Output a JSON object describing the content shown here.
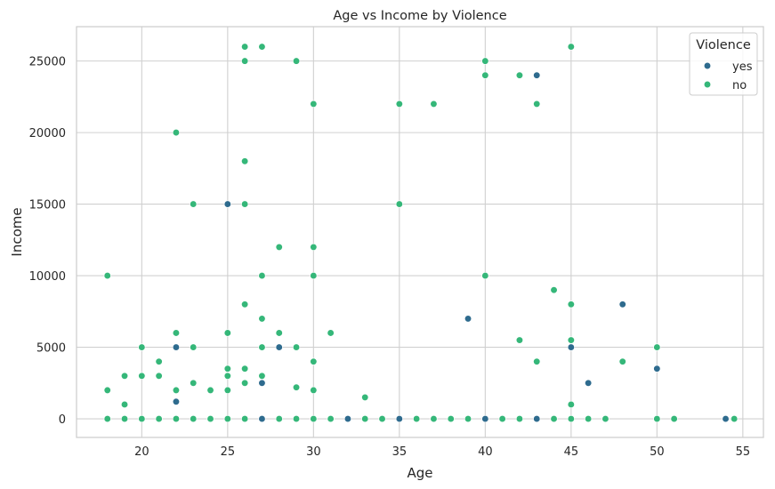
{
  "chart_data": {
    "type": "scatter",
    "title": "Age vs Income by Violence",
    "xlabel": "Age",
    "ylabel": "Income",
    "xlim": [
      16.2,
      56.2
    ],
    "ylim": [
      -1300,
      27400
    ],
    "xticks": [
      20,
      25,
      30,
      35,
      40,
      45,
      50,
      55
    ],
    "yticks": [
      0,
      5000,
      10000,
      15000,
      20000,
      25000
    ],
    "grid": true,
    "legend": {
      "title": "Violence",
      "placement": "top-right"
    },
    "series": [
      {
        "name": "yes",
        "color": "#2e6b8e",
        "points": [
          [
            22,
            1200
          ],
          [
            22,
            5000
          ],
          [
            25,
            15000
          ],
          [
            27,
            2500
          ],
          [
            27,
            0
          ],
          [
            28,
            5000
          ],
          [
            32,
            0
          ],
          [
            35,
            0
          ],
          [
            39,
            7000
          ],
          [
            40,
            0
          ],
          [
            43,
            24000
          ],
          [
            43,
            0
          ],
          [
            45,
            5000
          ],
          [
            46,
            2500
          ],
          [
            48,
            8000
          ],
          [
            50,
            3500
          ],
          [
            54,
            0
          ]
        ]
      },
      {
        "name": "no",
        "color": "#35b779",
        "points": [
          [
            18,
            10000
          ],
          [
            18,
            2000
          ],
          [
            18,
            0
          ],
          [
            19,
            3000
          ],
          [
            19,
            1000
          ],
          [
            19,
            0
          ],
          [
            20,
            5000
          ],
          [
            20,
            3000
          ],
          [
            20,
            0
          ],
          [
            21,
            4000
          ],
          [
            21,
            3000
          ],
          [
            21,
            0
          ],
          [
            22,
            20000
          ],
          [
            22,
            6000
          ],
          [
            22,
            2000
          ],
          [
            22,
            0
          ],
          [
            23,
            15000
          ],
          [
            23,
            5000
          ],
          [
            23,
            2500
          ],
          [
            23,
            0
          ],
          [
            24,
            2000
          ],
          [
            24,
            0
          ],
          [
            25,
            6000
          ],
          [
            25,
            3500
          ],
          [
            25,
            3000
          ],
          [
            25,
            2000
          ],
          [
            25,
            0
          ],
          [
            26,
            26000
          ],
          [
            26,
            25000
          ],
          [
            26,
            18000
          ],
          [
            26,
            15000
          ],
          [
            26,
            8000
          ],
          [
            26,
            3500
          ],
          [
            26,
            2500
          ],
          [
            26,
            0
          ],
          [
            27,
            26000
          ],
          [
            27,
            10000
          ],
          [
            27,
            7000
          ],
          [
            27,
            5000
          ],
          [
            27,
            3000
          ],
          [
            28,
            12000
          ],
          [
            28,
            6000
          ],
          [
            28,
            0
          ],
          [
            29,
            25000
          ],
          [
            29,
            5000
          ],
          [
            29,
            2200
          ],
          [
            29,
            0
          ],
          [
            30,
            22000
          ],
          [
            30,
            12000
          ],
          [
            30,
            10000
          ],
          [
            30,
            4000
          ],
          [
            30,
            2000
          ],
          [
            30,
            0
          ],
          [
            31,
            6000
          ],
          [
            31,
            0
          ],
          [
            33,
            1500
          ],
          [
            33,
            0
          ],
          [
            34,
            0
          ],
          [
            35,
            22000
          ],
          [
            35,
            15000
          ],
          [
            36,
            0
          ],
          [
            37,
            22000
          ],
          [
            37,
            0
          ],
          [
            38,
            0
          ],
          [
            39,
            0
          ],
          [
            40,
            25000
          ],
          [
            40,
            24000
          ],
          [
            40,
            10000
          ],
          [
            41,
            0
          ],
          [
            42,
            24000
          ],
          [
            42,
            5500
          ],
          [
            42,
            0
          ],
          [
            43,
            22000
          ],
          [
            43,
            4000
          ],
          [
            44,
            9000
          ],
          [
            44,
            0
          ],
          [
            45,
            26000
          ],
          [
            45,
            8000
          ],
          [
            45,
            5500
          ],
          [
            45,
            1000
          ],
          [
            45,
            0
          ],
          [
            46,
            0
          ],
          [
            47,
            0
          ],
          [
            48,
            4000
          ],
          [
            50,
            5000
          ],
          [
            50,
            0
          ],
          [
            51,
            0
          ],
          [
            54.5,
            0
          ]
        ]
      }
    ]
  }
}
